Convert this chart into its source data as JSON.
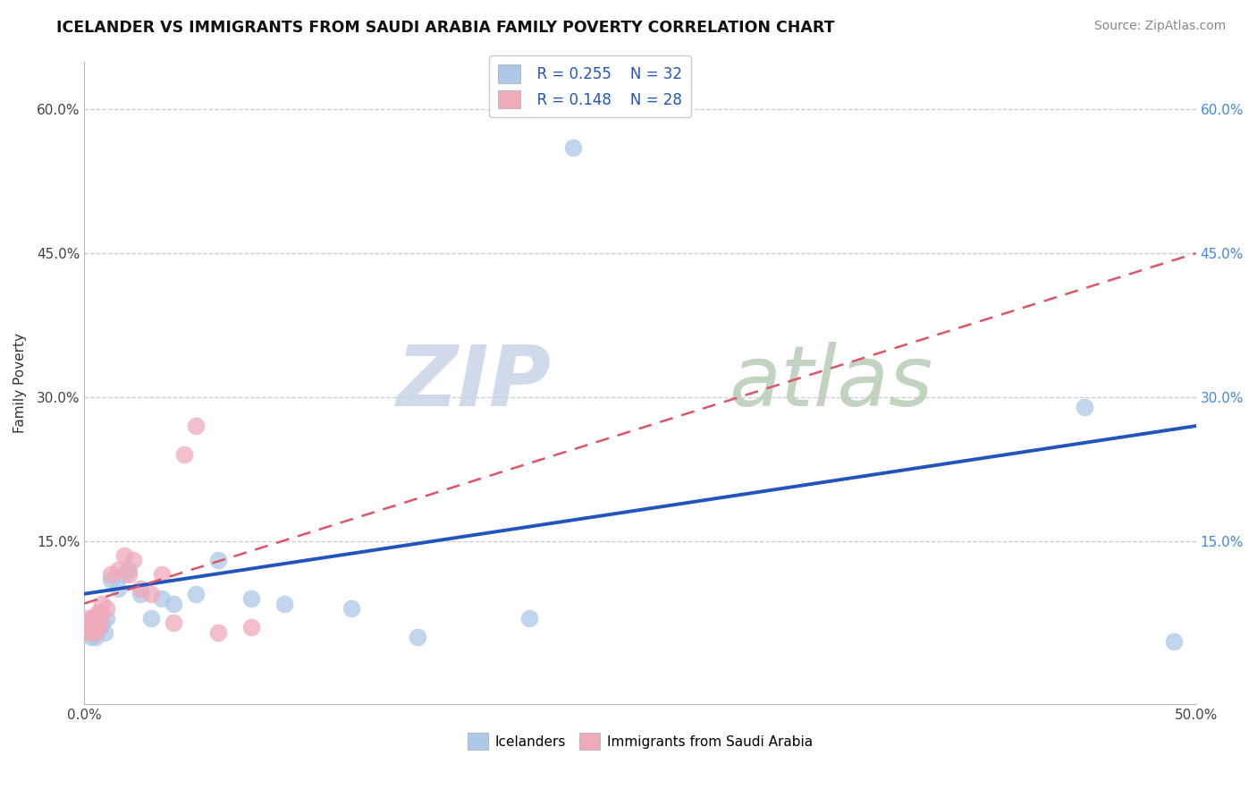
{
  "title": "ICELANDER VS IMMIGRANTS FROM SAUDI ARABIA FAMILY POVERTY CORRELATION CHART",
  "source": "Source: ZipAtlas.com",
  "ylabel": "Family Poverty",
  "xlim": [
    0.0,
    0.5
  ],
  "ylim": [
    -0.02,
    0.65
  ],
  "xticks": [
    0.0,
    0.1,
    0.2,
    0.3,
    0.4,
    0.5
  ],
  "xticklabels": [
    "0.0%",
    "",
    "",
    "",
    "",
    "50.0%"
  ],
  "yticks": [
    0.0,
    0.15,
    0.3,
    0.45,
    0.6
  ],
  "yticklabels": [
    "",
    "15.0%",
    "30.0%",
    "45.0%",
    "60.0%"
  ],
  "right_yticklabels": [
    "15.0%",
    "30.0%",
    "45.0%",
    "60.0%"
  ],
  "legend_r1": "R = 0.255",
  "legend_n1": "N = 32",
  "legend_r2": "R = 0.148",
  "legend_n2": "N = 28",
  "color_icelander": "#adc8e8",
  "color_saudi": "#f0aaba",
  "color_line_icelander": "#2255bb",
  "color_line_saudi": "#dd5566",
  "grid_color": "#cccccc",
  "icelander_x": [
    0.001,
    0.002,
    0.003,
    0.003,
    0.004,
    0.004,
    0.005,
    0.005,
    0.006,
    0.006,
    0.007,
    0.008,
    0.009,
    0.01,
    0.012,
    0.015,
    0.018,
    0.02,
    0.025,
    0.03,
    0.035,
    0.04,
    0.05,
    0.06,
    0.075,
    0.09,
    0.12,
    0.15,
    0.2,
    0.22,
    0.45,
    0.49
  ],
  "icelander_y": [
    0.055,
    0.06,
    0.05,
    0.065,
    0.055,
    0.07,
    0.06,
    0.05,
    0.06,
    0.07,
    0.06,
    0.065,
    0.055,
    0.07,
    0.11,
    0.1,
    0.115,
    0.12,
    0.095,
    0.07,
    0.09,
    0.085,
    0.095,
    0.13,
    0.09,
    0.085,
    0.08,
    0.05,
    0.07,
    0.56,
    0.29,
    0.045
  ],
  "saudi_x": [
    0.001,
    0.002,
    0.002,
    0.003,
    0.003,
    0.004,
    0.004,
    0.005,
    0.005,
    0.006,
    0.006,
    0.007,
    0.007,
    0.008,
    0.01,
    0.012,
    0.015,
    0.018,
    0.02,
    0.022,
    0.025,
    0.03,
    0.035,
    0.04,
    0.045,
    0.05,
    0.06,
    0.075
  ],
  "saudi_y": [
    0.06,
    0.055,
    0.07,
    0.06,
    0.065,
    0.07,
    0.06,
    0.055,
    0.065,
    0.06,
    0.075,
    0.065,
    0.075,
    0.085,
    0.08,
    0.115,
    0.12,
    0.135,
    0.115,
    0.13,
    0.1,
    0.095,
    0.115,
    0.065,
    0.24,
    0.27,
    0.055,
    0.06
  ],
  "trend_ice_x0": 0.0,
  "trend_ice_y0": 0.095,
  "trend_ice_x1": 0.5,
  "trend_ice_y1": 0.27,
  "trend_sau_x0": 0.0,
  "trend_sau_y0": 0.085,
  "trend_sau_x1": 0.5,
  "trend_sau_y1": 0.45
}
